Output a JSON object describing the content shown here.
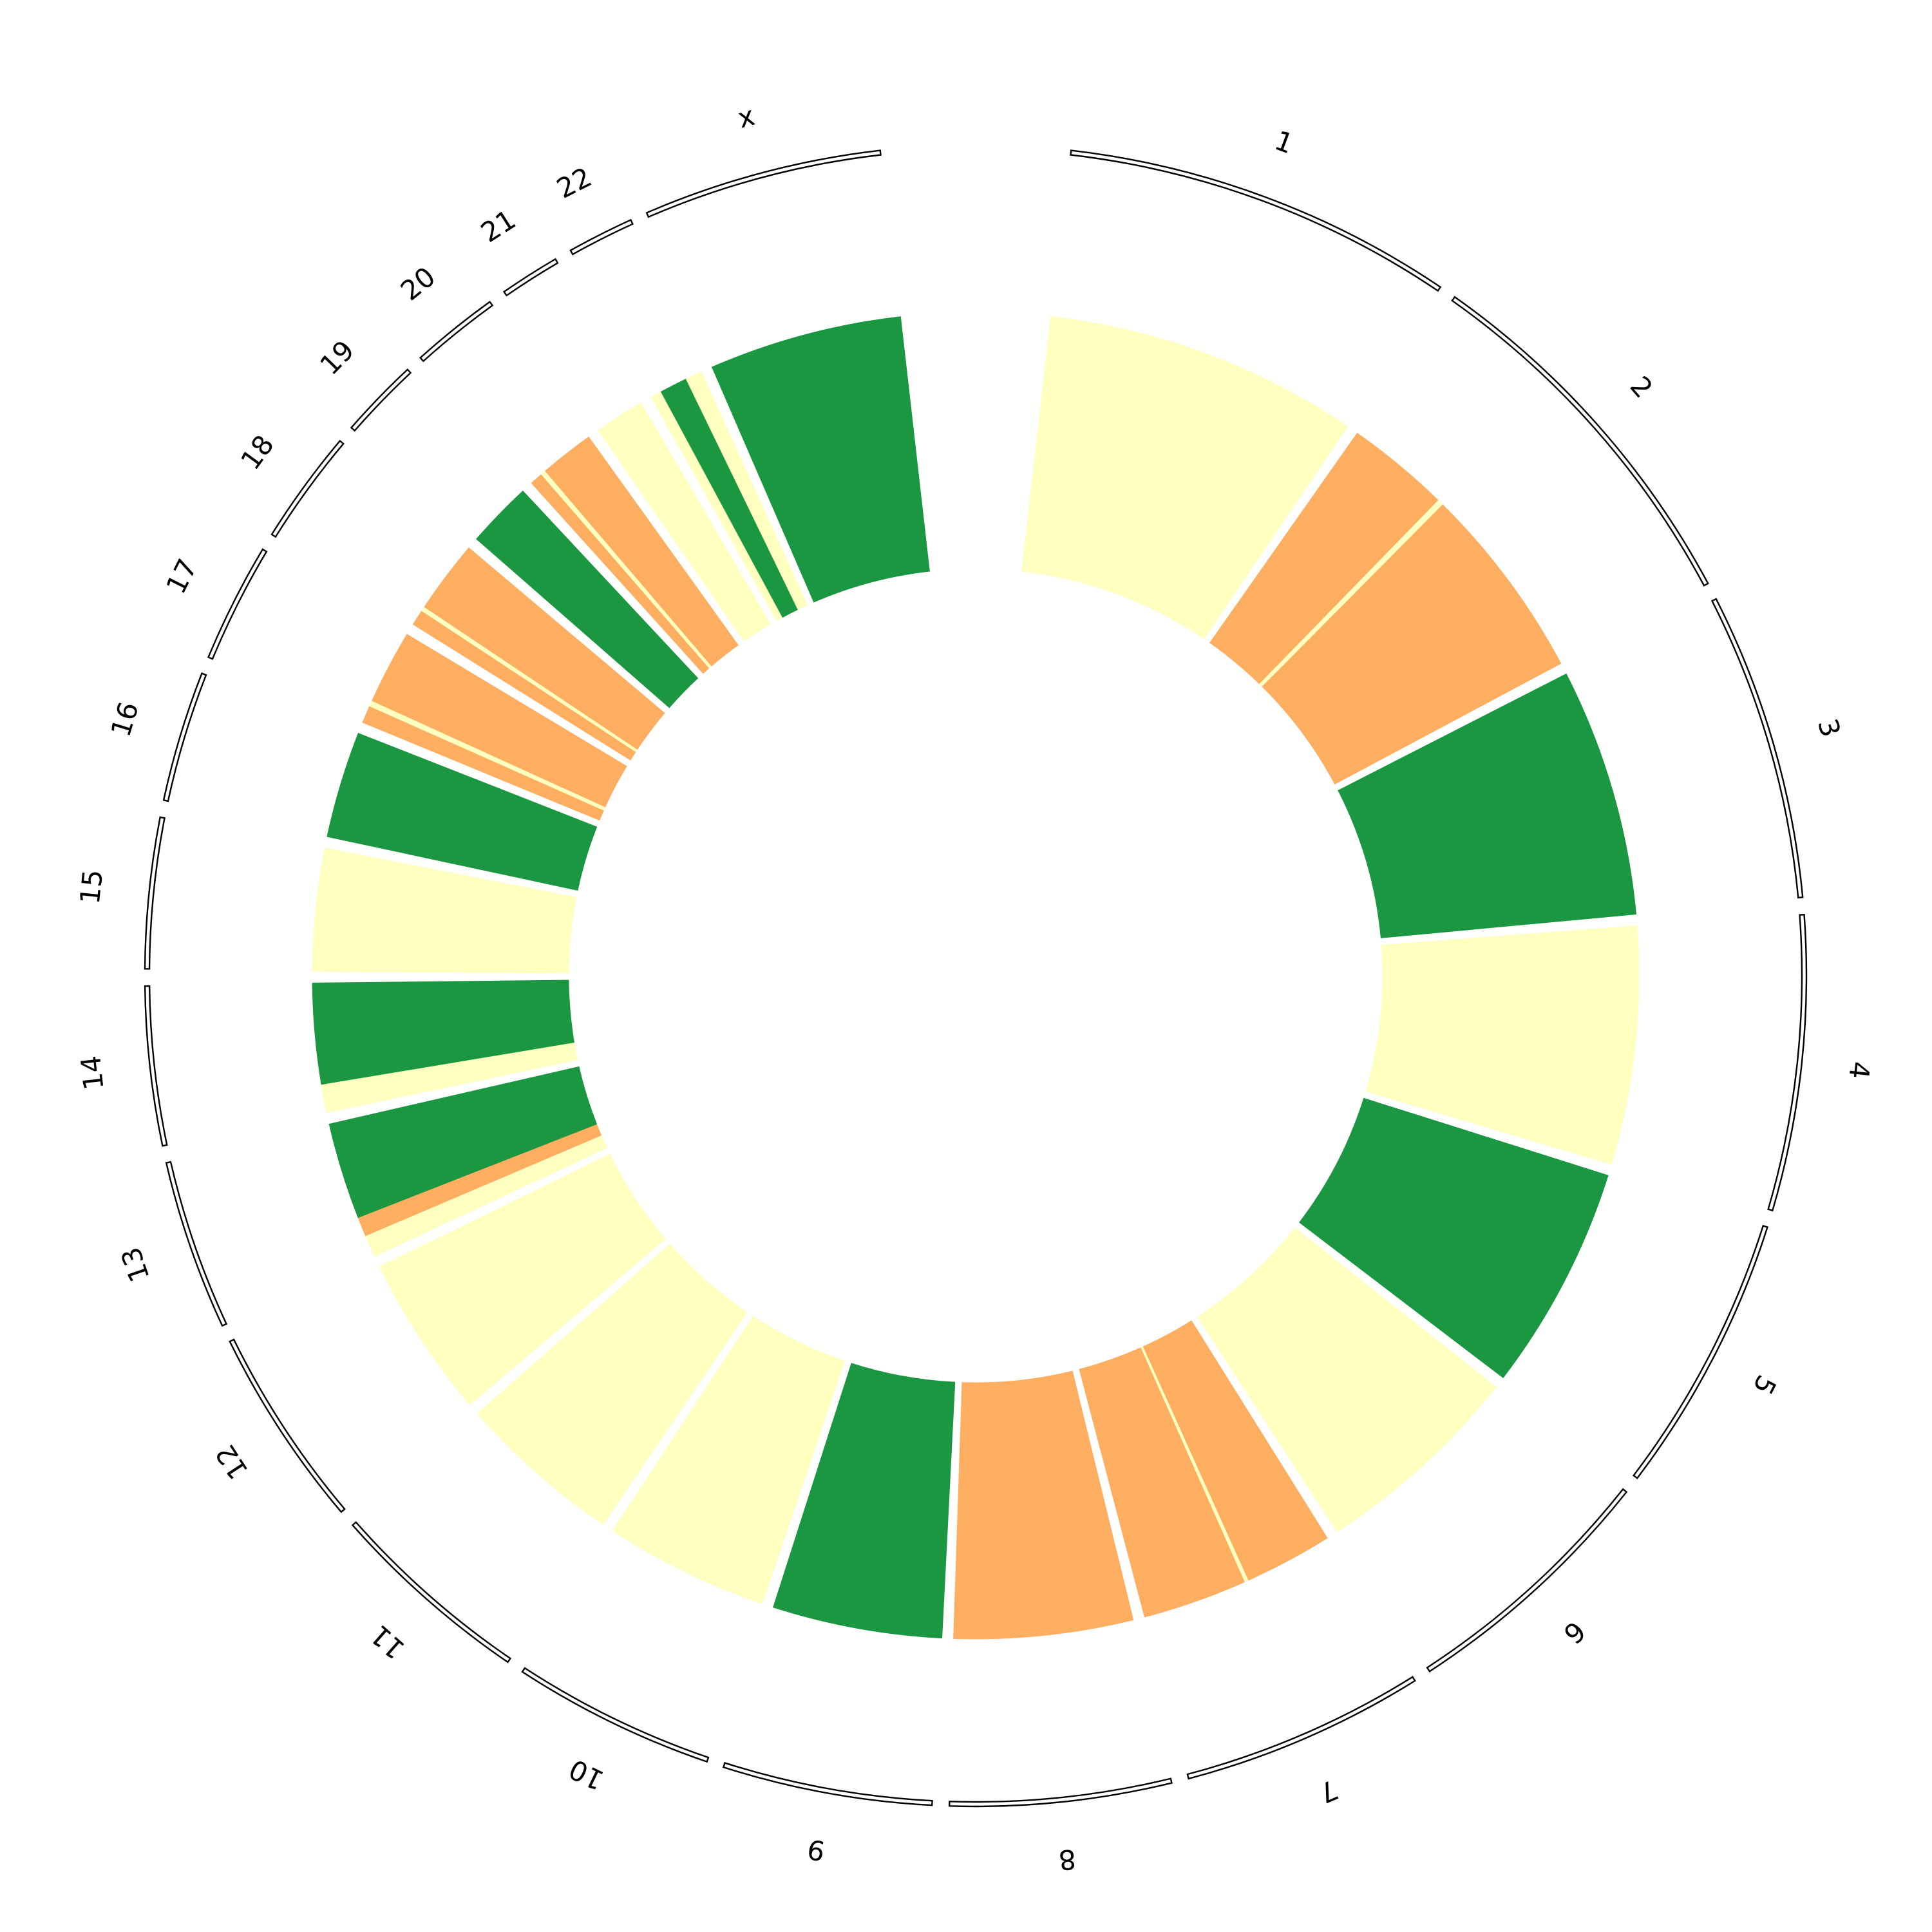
{
  "chart_data": {
    "type": "circos",
    "chromosomes": [
      {
        "name": "1",
        "length": 249
      },
      {
        "name": "2",
        "length": 242
      },
      {
        "name": "3",
        "length": 198
      },
      {
        "name": "4",
        "length": 190
      },
      {
        "name": "5",
        "length": 181
      },
      {
        "name": "6",
        "length": 171
      },
      {
        "name": "7",
        "length": 159
      },
      {
        "name": "8",
        "length": 145
      },
      {
        "name": "9",
        "length": 138
      },
      {
        "name": "10",
        "length": 134
      },
      {
        "name": "11",
        "length": 135
      },
      {
        "name": "12",
        "length": 133
      },
      {
        "name": "13",
        "length": 114
      },
      {
        "name": "14",
        "length": 107
      },
      {
        "name": "15",
        "length": 102
      },
      {
        "name": "16",
        "length": 90
      },
      {
        "name": "17",
        "length": 83
      },
      {
        "name": "18",
        "length": 80
      },
      {
        "name": "19",
        "length": 59
      },
      {
        "name": "20",
        "length": 64
      },
      {
        "name": "21",
        "length": 47
      },
      {
        "name": "22",
        "length": 51
      },
      {
        "name": "x",
        "length": 156
      }
    ],
    "segments": [
      {
        "chr": "1",
        "cells": [
          {
            "len": 0.55,
            "state": "normal"
          },
          {
            "len": 0.45,
            "state": "normal"
          }
        ]
      },
      {
        "chr": "2",
        "cells": [
          {
            "len": 0.34,
            "state": "loss"
          },
          {
            "len": 0.02,
            "state": "normal"
          },
          {
            "len": 0.1,
            "state": "loss"
          },
          {
            "len": 0.54,
            "state": "loss"
          }
        ]
      },
      {
        "chr": "3",
        "cells": [
          {
            "len": 1.0,
            "state": "gain"
          }
        ]
      },
      {
        "chr": "4",
        "cells": [
          {
            "len": 1.0,
            "state": "normal"
          }
        ]
      },
      {
        "chr": "5",
        "cells": [
          {
            "len": 1.0,
            "state": "gain"
          }
        ]
      },
      {
        "chr": "6",
        "cells": [
          {
            "len": 1.0,
            "state": "normal"
          }
        ]
      },
      {
        "chr": "7",
        "cells": [
          {
            "len": 0.45,
            "state": "loss"
          },
          {
            "len": 0.02,
            "state": "normal"
          },
          {
            "len": 0.53,
            "state": "loss"
          }
        ]
      },
      {
        "chr": "8",
        "cells": [
          {
            "len": 1.0,
            "state": "loss"
          }
        ]
      },
      {
        "chr": "9",
        "cells": [
          {
            "len": 1.0,
            "state": "gain"
          }
        ]
      },
      {
        "chr": "10",
        "cells": [
          {
            "len": 1.0,
            "state": "normal"
          }
        ]
      },
      {
        "chr": "11",
        "cells": [
          {
            "len": 1.0,
            "state": "normal"
          }
        ]
      },
      {
        "chr": "12",
        "cells": [
          {
            "len": 1.0,
            "state": "normal"
          }
        ]
      },
      {
        "chr": "13",
        "cells": [
          {
            "len": 0.16,
            "state": "normal"
          },
          {
            "len": 0.14,
            "state": "loss"
          },
          {
            "len": 0.7,
            "state": "gain"
          }
        ]
      },
      {
        "chr": "14",
        "cells": [
          {
            "len": 0.22,
            "state": "normal"
          },
          {
            "len": 0.78,
            "state": "gain"
          }
        ]
      },
      {
        "chr": "15",
        "cells": [
          {
            "len": 1.0,
            "state": "normal"
          }
        ]
      },
      {
        "chr": "16",
        "cells": [
          {
            "len": 0.38,
            "state": "gain"
          },
          {
            "len": 0.62,
            "state": "gain"
          }
        ]
      },
      {
        "chr": "17",
        "cells": [
          {
            "len": 0.18,
            "state": "loss"
          },
          {
            "len": 0.06,
            "state": "normal"
          },
          {
            "len": 0.76,
            "state": "loss"
          }
        ]
      },
      {
        "chr": "18",
        "cells": [
          {
            "len": 0.17,
            "state": "loss"
          },
          {
            "len": 0.05,
            "state": "normal"
          },
          {
            "len": 0.78,
            "state": "loss"
          }
        ]
      },
      {
        "chr": "19",
        "cells": [
          {
            "len": 1.0,
            "state": "gain"
          }
        ]
      },
      {
        "chr": "20",
        "cells": [
          {
            "len": 0.18,
            "state": "loss"
          },
          {
            "len": 0.07,
            "state": "normal"
          },
          {
            "len": 0.75,
            "state": "loss"
          }
        ]
      },
      {
        "chr": "21",
        "cells": [
          {
            "len": 1.0,
            "state": "normal"
          }
        ]
      },
      {
        "chr": "22",
        "cells": [
          {
            "len": 0.2,
            "state": "normal"
          },
          {
            "len": 0.5,
            "state": "gain"
          },
          {
            "len": 0.3,
            "state": "normal"
          }
        ]
      },
      {
        "chr": "x",
        "cells": [
          {
            "len": 1.0,
            "state": "gain"
          }
        ]
      }
    ],
    "colors": {
      "gain": "#1b9641",
      "normal": "#ffffbf",
      "loss": "#fdae61",
      "ideogram_stroke": "#000000"
    }
  }
}
